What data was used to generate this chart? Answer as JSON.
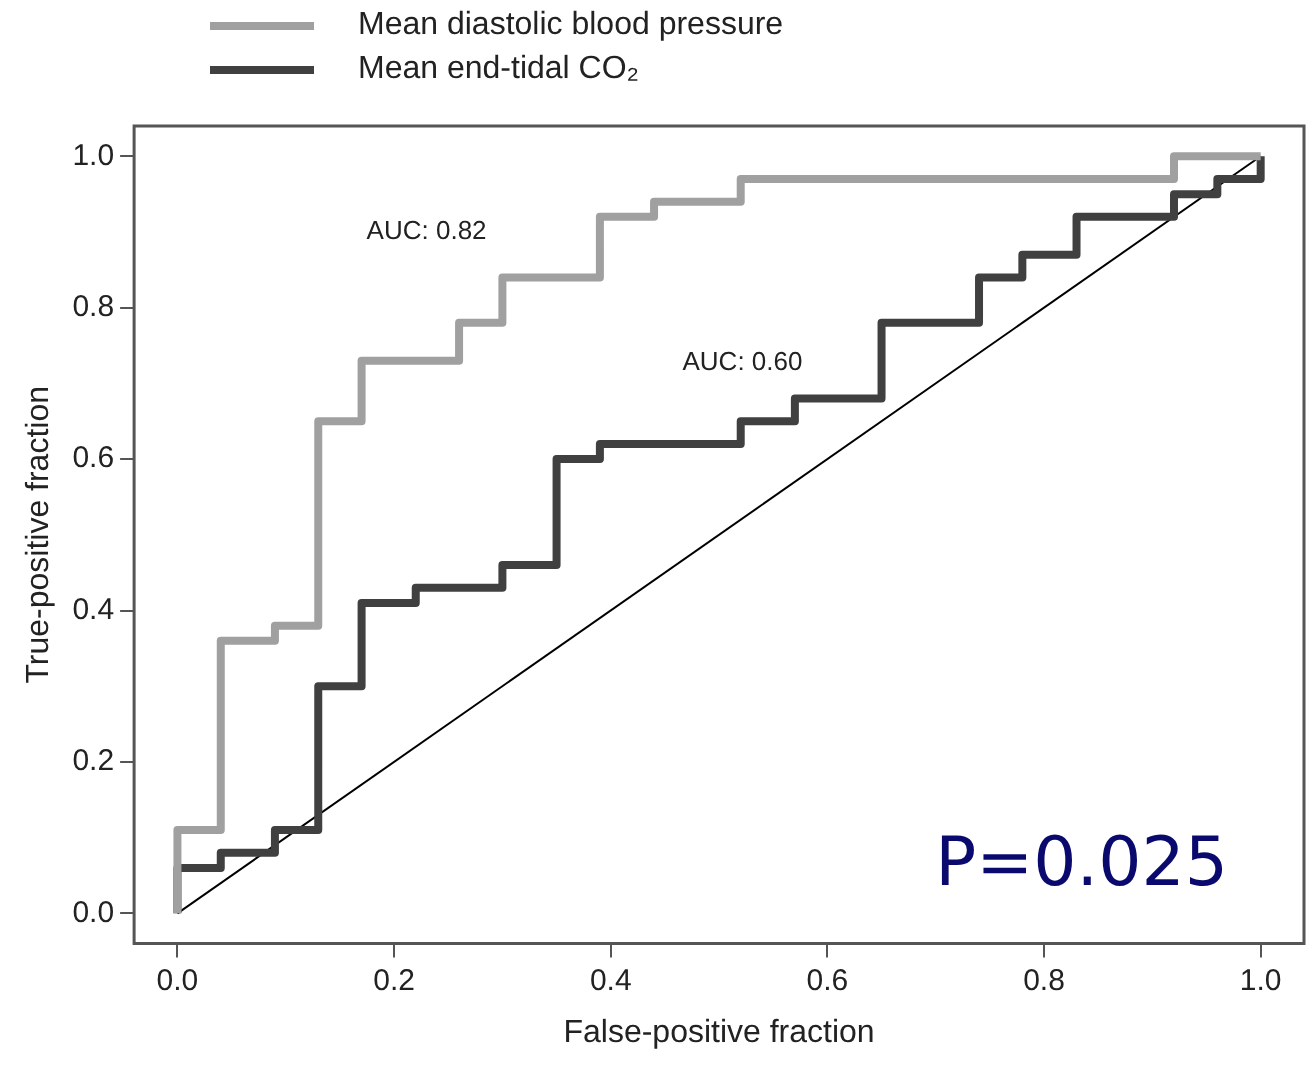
{
  "chart_data": {
    "type": "step",
    "xlabel": "False-positive fraction",
    "ylabel": "True-positive fraction",
    "xlim": [
      -0.04,
      1.04
    ],
    "ylim": [
      -0.04,
      1.04
    ],
    "xticks": [
      {
        "value": 0,
        "label": "0.0"
      },
      0.2,
      0.4,
      0.6,
      0.8,
      {
        "value": 1,
        "label": "1.0"
      }
    ],
    "yticks": [
      {
        "value": 0,
        "label": "0.0"
      },
      0.2,
      0.4,
      0.6,
      0.8,
      {
        "value": 1,
        "label": "1.0"
      }
    ],
    "grid": false,
    "legend": "top",
    "marker": "none",
    "series": [
      {
        "name": "Mean diastolic blood pressure",
        "color": "#a0a0a0",
        "x": [
          0,
          0,
          0.04,
          0.09,
          0.13,
          0.17,
          0.26,
          0.3,
          0.39,
          0.44,
          0.52,
          0.92,
          1
        ],
        "values": [
          0,
          0.11,
          0.36,
          0.38,
          0.65,
          0.73,
          0.78,
          0.84,
          0.92,
          0.94,
          0.97,
          1,
          1
        ]
      },
      {
        "name": "Mean end-tidal CO₂",
        "color": "#404040",
        "x": [
          0,
          0,
          0.04,
          0.09,
          0.13,
          0.17,
          0.22,
          0.3,
          0.35,
          0.39,
          0.52,
          0.57,
          0.65,
          0.74,
          0.78,
          0.83,
          0.92,
          0.96,
          1,
          1
        ],
        "values": [
          0,
          0.06,
          0.08,
          0.11,
          0.3,
          0.41,
          0.43,
          0.46,
          0.6,
          0.62,
          0.65,
          0.68,
          0.78,
          0.84,
          0.87,
          0.92,
          0.95,
          0.97,
          0.97,
          1
        ]
      },
      {
        "type": "line",
        "color": "#000000",
        "x": [
          0,
          1
        ],
        "values": [
          0,
          1
        ]
      }
    ],
    "annotations": [
      "AUC: 0.82",
      "AUC: 0.60",
      "P=0.025"
    ]
  }
}
